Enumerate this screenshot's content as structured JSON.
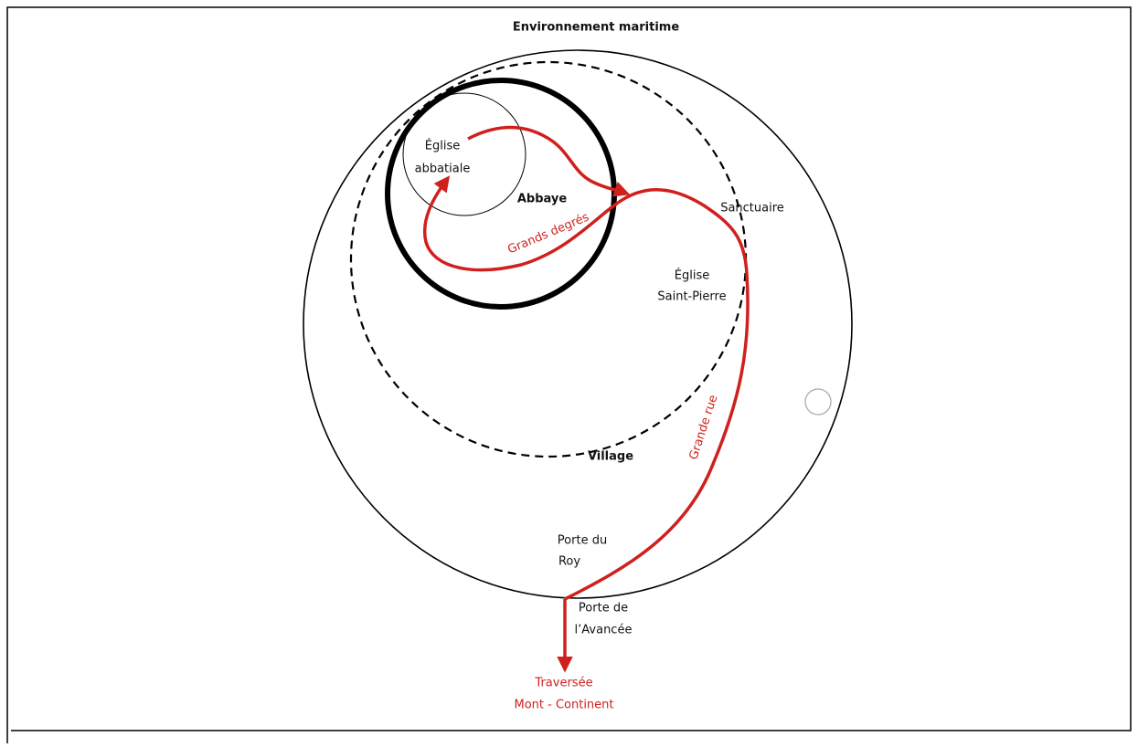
{
  "title": "Environnement maritime",
  "zones": {
    "abbaye": "Abbaye",
    "village": "Village",
    "sanctuaire": "Sanctuaire"
  },
  "places": {
    "eglise_abbatiale": [
      "Église",
      "abbatiale"
    ],
    "eglise_saint_pierre": [
      "Église",
      "Saint-Pierre"
    ],
    "porte_du_roy": [
      "Porte du",
      "Roy"
    ],
    "porte_avancee": [
      "Porte de",
      "l’Avancée"
    ],
    "traversee": [
      "Traversée",
      "Mont - Continent"
    ]
  },
  "routes": {
    "grands_degres": "Grands degrés",
    "grande_rue": "Grande rue"
  }
}
